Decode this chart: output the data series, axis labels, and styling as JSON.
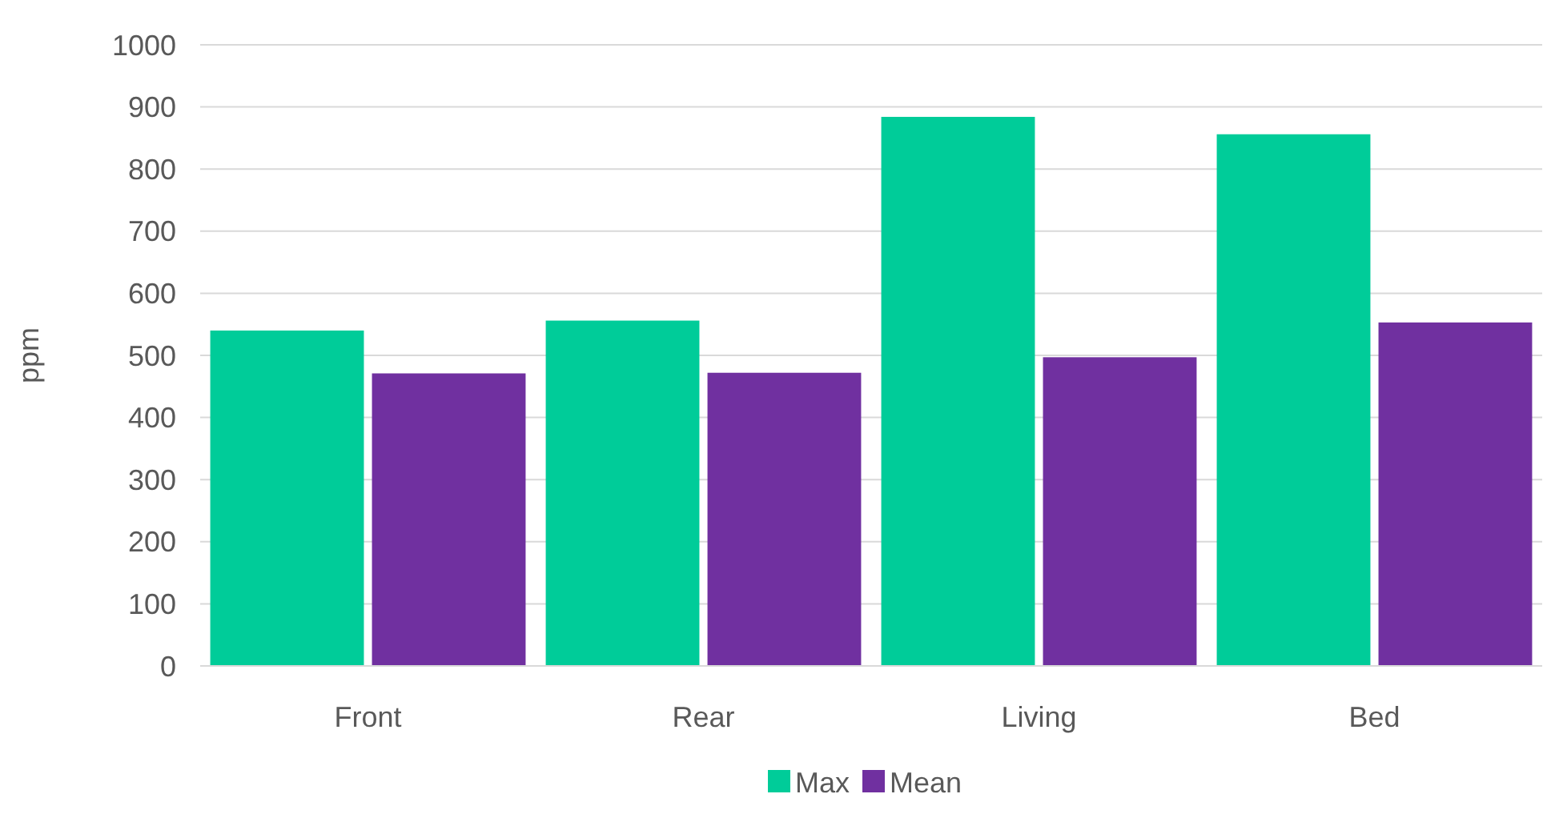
{
  "chart_data": {
    "type": "bar",
    "ylabel": "ppm",
    "categories": [
      "Front",
      "Rear",
      "Living",
      "Bed"
    ],
    "series": [
      {
        "name": "Max",
        "color": "#00cc99",
        "values": [
          540,
          556,
          884,
          856
        ]
      },
      {
        "name": "Mean",
        "color": "#7030a0",
        "values": [
          471,
          472,
          497,
          553
        ]
      }
    ],
    "ylim": [
      0,
      1000
    ],
    "yticks": [
      0,
      100,
      200,
      300,
      400,
      500,
      600,
      700,
      800,
      900,
      1000
    ],
    "grid": "y",
    "legend": "bottom"
  }
}
